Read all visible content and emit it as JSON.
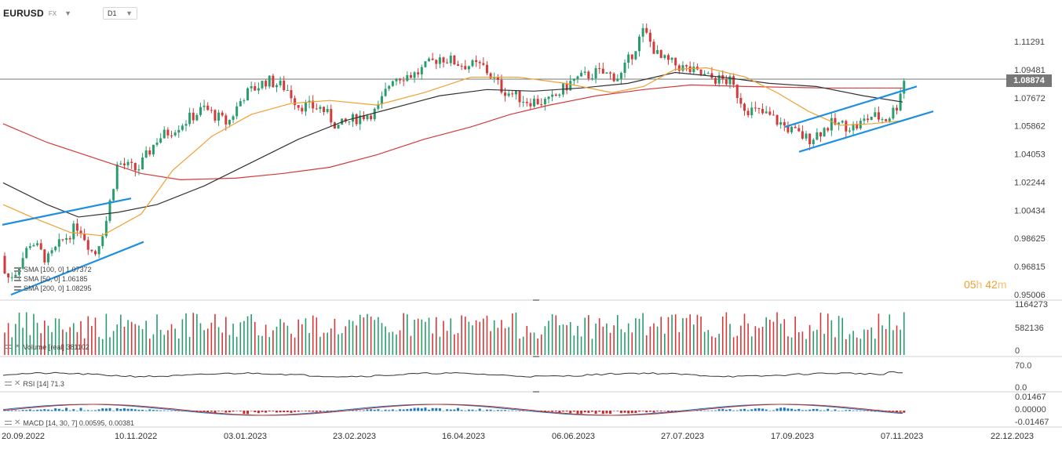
{
  "header": {
    "symbol": "EURUSD",
    "symbol_type": "FX",
    "timeframe": "D1"
  },
  "price_axis": {
    "labels": [
      "1.11291",
      "1.09481",
      "1.07672",
      "1.05862",
      "1.04053",
      "1.02244",
      "1.00434",
      "0.98625",
      "0.96815",
      "0.95006"
    ],
    "last_price": "1.08874"
  },
  "volume_axis": {
    "labels": [
      "1164273",
      "582136",
      "0"
    ]
  },
  "rsi_axis": {
    "labels": [
      "70.0",
      "0.0"
    ]
  },
  "macd_axis": {
    "labels": [
      "0.01467",
      "0.00000",
      "-0.01467"
    ]
  },
  "date_axis": {
    "labels": [
      "20.09.2022",
      "10.11.2022",
      "03.01.2023",
      "23.02.2023",
      "16.04.2023",
      "06.06.2023",
      "27.07.2023",
      "17.09.2023",
      "07.11.2023",
      "22.12.2023"
    ]
  },
  "indicators": {
    "sma100": "SMA [100, 0] 1.07372",
    "sma50": "SMA [50, 0] 1.06185",
    "sma200": "SMA [200, 0] 1.08295",
    "volume": "Volume [real] 381102",
    "rsi": "RSI [14] 71.3",
    "macd": "MACD [14, 30, 7] 0.00595, 0.00381"
  },
  "countdown": {
    "hours": "05",
    "h_unit": "h",
    "minutes": "42",
    "m_unit": "m"
  },
  "colors": {
    "bull": "#2a9d6e",
    "bear": "#d43a3a",
    "sma50": "#f0a030",
    "sma100": "#333333",
    "sma200": "#d43a3a",
    "trendline": "#1e90e0",
    "price_line": "#777777"
  }
}
